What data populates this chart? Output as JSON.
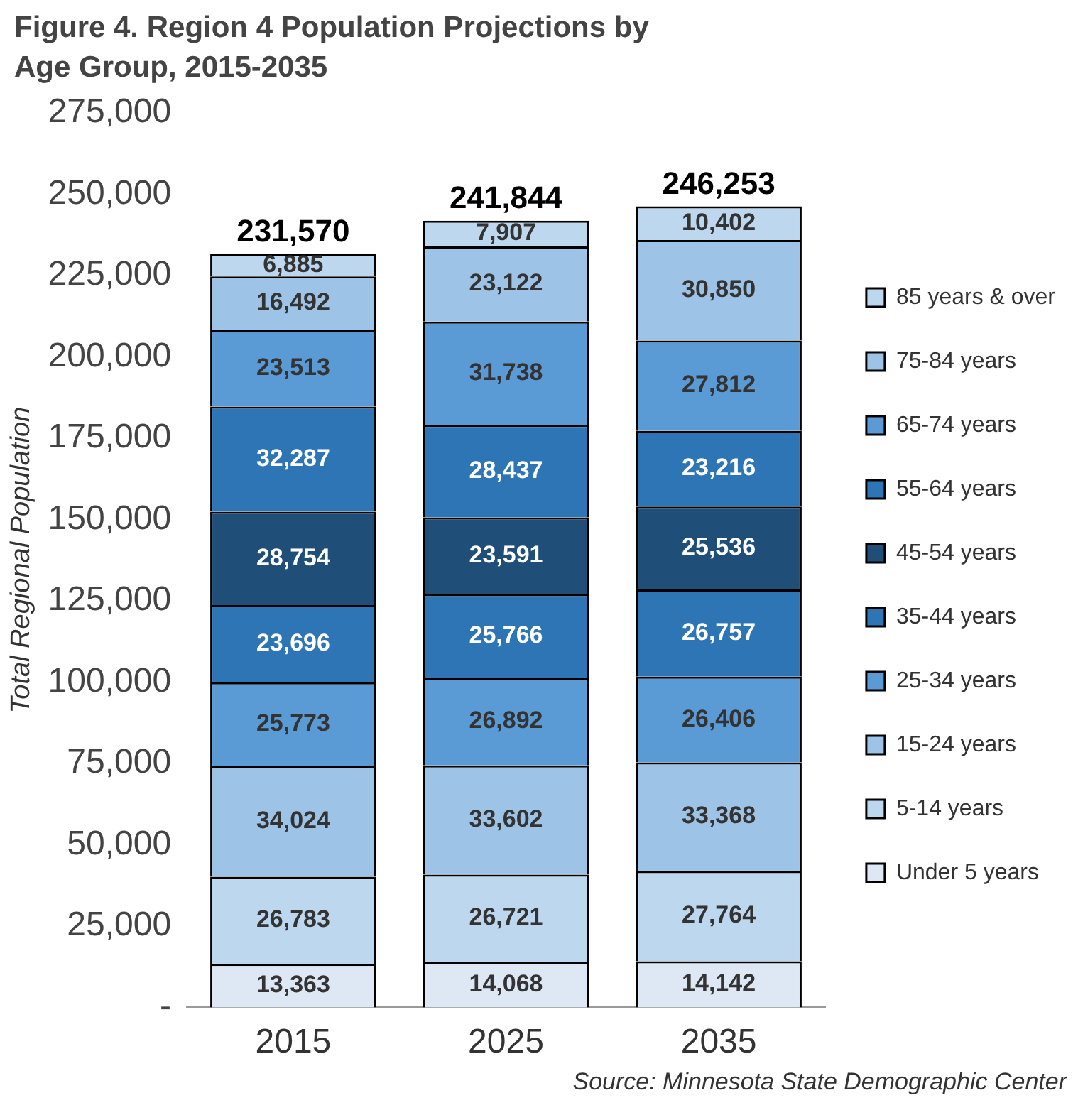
{
  "chart_data": {
    "type": "bar",
    "stacked": true,
    "title": "Figure 4. Region 4 Population Projections by Age Group, 2015-2035",
    "ylabel": "Total Regional Population",
    "annotations": [
      "Source: Minnesota State Demographic Center"
    ],
    "categories": [
      "2015",
      "2025",
      "2035"
    ],
    "series": [
      {
        "name": "Under 5 years",
        "color": "#dee8f4",
        "values": [
          13363,
          14068,
          14142
        ],
        "value_labels": [
          "13,363",
          "14,068",
          "14,142"
        ]
      },
      {
        "name": "5-14 years",
        "color": "#bdd7ee",
        "values": [
          26783,
          26721,
          27764
        ],
        "value_labels": [
          "26,783",
          "26,721",
          "27,764"
        ]
      },
      {
        "name": "15-24 years",
        "color": "#9dc3e6",
        "values": [
          34024,
          33602,
          33368
        ],
        "value_labels": [
          "34,024",
          "33,602",
          "33,368"
        ]
      },
      {
        "name": "25-34 years",
        "color": "#5b9bd5",
        "values": [
          25773,
          26892,
          26406
        ],
        "value_labels": [
          "25,773",
          "26,892",
          "26,406"
        ]
      },
      {
        "name": "35-44 years",
        "color": "#2e75b6",
        "values": [
          23696,
          25766,
          26757
        ],
        "value_labels": [
          "23,696",
          "25,766",
          "26,757"
        ]
      },
      {
        "name": "45-54 years",
        "color": "#1f4e79",
        "values": [
          28754,
          23591,
          25536
        ],
        "value_labels": [
          "28,754",
          "23,591",
          "25,536"
        ]
      },
      {
        "name": "55-64 years",
        "color": "#2e75b6",
        "values": [
          32287,
          28437,
          23216
        ],
        "value_labels": [
          "32,287",
          "28,437",
          "23,216"
        ]
      },
      {
        "name": "65-74 years",
        "color": "#5b9bd5",
        "values": [
          23513,
          31738,
          27812
        ],
        "value_labels": [
          "23,513",
          "31,738",
          "27,812"
        ]
      },
      {
        "name": "75-84 years",
        "color": "#9dc3e6",
        "values": [
          16492,
          23122,
          30850
        ],
        "value_labels": [
          "16,492",
          "23,122",
          "30,850"
        ]
      },
      {
        "name": "85 years & over",
        "color": "#bdd7ee",
        "values": [
          6885,
          7907,
          10402
        ],
        "value_labels": [
          "6,885",
          "7,907",
          "10,402"
        ]
      }
    ],
    "totals": [
      "231,570",
      "241,844",
      "246,253"
    ],
    "grid": false,
    "legend": "right",
    "ylim": [
      0,
      275000
    ],
    "yticks": [
      {
        "value": 0,
        "label": "-"
      },
      {
        "value": 25000,
        "label": "25,000"
      },
      {
        "value": 50000,
        "label": "50,000"
      },
      {
        "value": 75000,
        "label": "75,000"
      },
      {
        "value": 100000,
        "label": "100,000"
      },
      {
        "value": 125000,
        "label": "125,000"
      },
      {
        "value": 150000,
        "label": "150,000"
      },
      {
        "value": 175000,
        "label": "175,000"
      },
      {
        "value": 200000,
        "label": "200,000"
      },
      {
        "value": 225000,
        "label": "225,000"
      },
      {
        "value": 250000,
        "label": "250,000"
      },
      {
        "value": 275000,
        "label": "275,000"
      }
    ]
  }
}
